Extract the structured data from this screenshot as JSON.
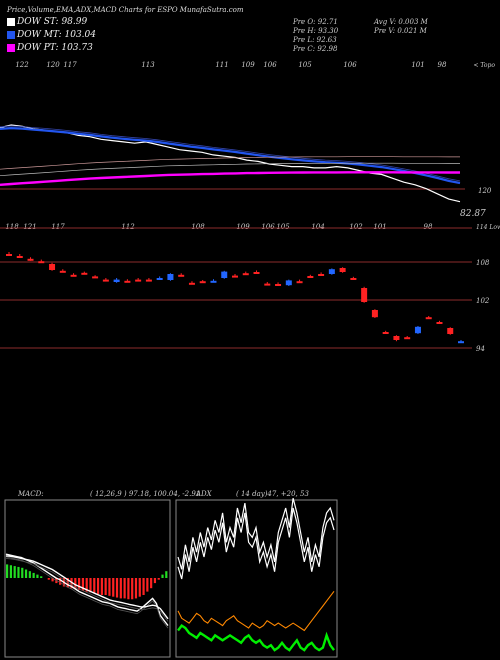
{
  "header": {
    "title": "Price,Volume,EMA,ADX,MACD Charts for ESPO MunafaSutra.com",
    "legend": [
      {
        "label": "DOW ST: 98.99",
        "color": "#ffffff"
      },
      {
        "label": "DOW MT: 103.04",
        "color": "#2255ee"
      },
      {
        "label": "DOW PT: 103.73",
        "color": "#ff00ff"
      }
    ],
    "info_left": [
      "Pre  O: 92.71",
      "Pre  H: 93.30",
      "Pre  L: 92.63",
      "Pre  C: 92.98"
    ],
    "info_right": [
      "Avg V: 0.003 M",
      "Pre  V: 0.021 M"
    ]
  },
  "chart_data": [
    {
      "type": "line",
      "name": "price-ema",
      "top_labels": [
        "122",
        "120",
        "117",
        "113",
        "111",
        "109",
        "106",
        "105",
        "106",
        "101",
        "98"
      ],
      "right_label_top": "< Topo",
      "level_label": "120",
      "last_price_label": "82.87",
      "series": [
        {
          "color": "#ffffff",
          "values": [
            121,
            122,
            121.5,
            120.5,
            120,
            119.5,
            119,
            118,
            117.5,
            116.5,
            116,
            115.5,
            115,
            115.5,
            114.5,
            113.5,
            112.5,
            112,
            111.5,
            110.5,
            110,
            109.5,
            108.5,
            108,
            107,
            106.5,
            106,
            106,
            105.5,
            105.5,
            106,
            105.5,
            104.5,
            103.5,
            103,
            101.5,
            100,
            99,
            97.5,
            95.5,
            93.5,
            92.5
          ]
        },
        {
          "color": "#2255ee",
          "values": [
            120.5,
            120.8,
            120.6,
            120.2,
            119.9,
            119.5,
            119.1,
            118.6,
            118.2,
            117.6,
            117.1,
            116.7,
            116.3,
            116,
            115.5,
            114.9,
            114.3,
            113.7,
            113.2,
            112.6,
            112.1,
            111.6,
            111,
            110.4,
            109.8,
            109.3,
            108.8,
            108.4,
            108,
            107.7,
            107.5,
            107.2,
            106.8,
            106.3,
            105.8,
            105.1,
            104.3,
            103.5,
            102.6,
            101.6,
            100.5,
            99.7
          ]
        },
        {
          "color": "#ff00ff",
          "values": [
            99,
            99.3,
            99.6,
            99.9,
            100.2,
            100.5,
            100.8,
            101.1,
            101.4,
            101.6,
            101.8,
            102,
            102.2,
            102.4,
            102.6,
            102.8,
            102.9,
            103,
            103.1,
            103.2,
            103.3,
            103.4,
            103.5,
            103.55,
            103.6,
            103.65,
            103.7,
            103.72,
            103.75,
            103.77,
            103.78,
            103.79,
            103.8,
            103.8,
            103.8,
            103.79,
            103.78,
            103.77,
            103.76,
            103.75,
            103.74,
            103.73
          ]
        }
      ]
    },
    {
      "type": "candlestick",
      "name": "price-candles",
      "top_labels": [
        "118",
        "121",
        "117",
        "112",
        "108",
        "109",
        "106",
        "105",
        "104",
        "102",
        "101",
        "98"
      ],
      "right_labels": [
        "114 Lower",
        "108",
        "102",
        "94"
      ],
      "candles": [
        {
          "o": 119,
          "c": 119,
          "h": 119.5,
          "l": 118.5,
          "color": "#ff2222"
        },
        {
          "o": 118.5,
          "c": 118.5,
          "h": 119,
          "l": 118,
          "color": "#ff2222"
        },
        {
          "o": 117.8,
          "c": 117.8,
          "h": 118.2,
          "l": 117.3,
          "color": "#ff2222"
        },
        {
          "o": 117.2,
          "c": 117.2,
          "h": 117.6,
          "l": 116.8,
          "color": "#ff2222"
        },
        {
          "o": 116.5,
          "c": 115,
          "h": 116.8,
          "l": 114.8,
          "color": "#ff2222"
        },
        {
          "o": 114.8,
          "c": 114.8,
          "h": 115.2,
          "l": 114.4,
          "color": "#ff2222"
        },
        {
          "o": 113.8,
          "c": 113.8,
          "h": 114.2,
          "l": 113.4,
          "color": "#ff2222"
        },
        {
          "o": 114.3,
          "c": 114.3,
          "h": 114.6,
          "l": 113.9,
          "color": "#ff2222"
        },
        {
          "o": 113.4,
          "c": 113.4,
          "h": 113.7,
          "l": 113.1,
          "color": "#ff2222"
        },
        {
          "o": 112.6,
          "c": 112.6,
          "h": 113,
          "l": 112.2,
          "color": "#ff2222"
        },
        {
          "o": 112,
          "c": 112.6,
          "h": 113,
          "l": 111.8,
          "color": "#2266ff"
        },
        {
          "o": 112.3,
          "c": 112.3,
          "h": 112.7,
          "l": 112,
          "color": "#ff2222"
        },
        {
          "o": 112.6,
          "c": 112.6,
          "h": 113,
          "l": 112.2,
          "color": "#ff2222"
        },
        {
          "o": 112.6,
          "c": 112.6,
          "h": 113,
          "l": 112.2,
          "color": "#ff2222"
        },
        {
          "o": 113,
          "c": 113,
          "h": 113.4,
          "l": 112.6,
          "color": "#2266ff"
        },
        {
          "o": 112.5,
          "c": 114,
          "h": 114.2,
          "l": 112.3,
          "color": "#2266ff"
        },
        {
          "o": 113.8,
          "c": 113.8,
          "h": 114.2,
          "l": 113.4,
          "color": "#ff2222"
        },
        {
          "o": 111.8,
          "c": 111.8,
          "h": 112.2,
          "l": 111.4,
          "color": "#ff2222"
        },
        {
          "o": 112.2,
          "c": 112.2,
          "h": 112.5,
          "l": 111.9,
          "color": "#ff2222"
        },
        {
          "o": 112.3,
          "c": 112.3,
          "h": 112.7,
          "l": 111.9,
          "color": "#2266ff"
        },
        {
          "o": 113,
          "c": 114.6,
          "h": 114.8,
          "l": 112.8,
          "color": "#2266ff"
        },
        {
          "o": 113.6,
          "c": 113.6,
          "h": 114,
          "l": 113.2,
          "color": "#ff2222"
        },
        {
          "o": 114.2,
          "c": 114.2,
          "h": 114.6,
          "l": 113.8,
          "color": "#ff2222"
        },
        {
          "o": 114.5,
          "c": 114.5,
          "h": 114.9,
          "l": 114.1,
          "color": "#ff2222"
        },
        {
          "o": 111.6,
          "c": 111.6,
          "h": 112,
          "l": 111.2,
          "color": "#ff2222"
        },
        {
          "o": 111.5,
          "c": 111.5,
          "h": 111.9,
          "l": 111.1,
          "color": "#ff2222"
        },
        {
          "o": 111.2,
          "c": 112.4,
          "h": 112.6,
          "l": 111,
          "color": "#2266ff"
        },
        {
          "o": 112.2,
          "c": 112.2,
          "h": 112.6,
          "l": 111.8,
          "color": "#ff2222"
        },
        {
          "o": 113.5,
          "c": 113.5,
          "h": 113.8,
          "l": 113.2,
          "color": "#ff2222"
        },
        {
          "o": 114,
          "c": 114,
          "h": 114.4,
          "l": 113.6,
          "color": "#ff2222"
        },
        {
          "o": 114,
          "c": 115.2,
          "h": 115.4,
          "l": 113.8,
          "color": "#2266ff"
        },
        {
          "o": 115.5,
          "c": 114.5,
          "h": 115.7,
          "l": 114.3,
          "color": "#ff2222"
        },
        {
          "o": 113,
          "c": 113,
          "h": 113.3,
          "l": 112.7,
          "color": "#ff2222"
        },
        {
          "o": 110.5,
          "c": 107,
          "h": 110.8,
          "l": 106.8,
          "color": "#ff2222"
        },
        {
          "o": 105,
          "c": 103.2,
          "h": 105.2,
          "l": 103,
          "color": "#ff2222"
        },
        {
          "o": 99.5,
          "c": 99.5,
          "h": 99.8,
          "l": 99.2,
          "color": "#ff2222"
        },
        {
          "o": 98.5,
          "c": 97.5,
          "h": 98.7,
          "l": 97.2,
          "color": "#ff2222"
        },
        {
          "o": 98.2,
          "c": 98.2,
          "h": 98.5,
          "l": 97.8,
          "color": "#ff2222"
        },
        {
          "o": 99.2,
          "c": 100.8,
          "h": 101,
          "l": 99,
          "color": "#2266ff"
        },
        {
          "o": 103.2,
          "c": 103.2,
          "h": 103.5,
          "l": 102.9,
          "color": "#ff2222"
        },
        {
          "o": 102,
          "c": 102,
          "h": 102.3,
          "l": 101.7,
          "color": "#ff2222"
        },
        {
          "o": 100.5,
          "c": 99,
          "h": 100.7,
          "l": 98.8,
          "color": "#ff2222"
        },
        {
          "o": 97.2,
          "c": 97.2,
          "h": 97.5,
          "l": 96.8,
          "color": "#2266ff"
        }
      ]
    },
    {
      "type": "bar",
      "name": "macd",
      "label": "MACD:",
      "params": "( 12,26,9 ) 97.18,  100.04,  -2.91",
      "histogram": [
        8,
        7.5,
        7,
        6.5,
        6,
        5,
        4,
        3,
        2,
        1,
        0,
        -1,
        -2,
        -3,
        -4,
        -5,
        -5.5,
        -6,
        -6.5,
        -7,
        -7.5,
        -8,
        -8.5,
        -9,
        -9.5,
        -10,
        -10,
        -10.5,
        -11,
        -11.5,
        -12,
        -12,
        -12.5,
        -12.5,
        -12,
        -11,
        -10,
        -8,
        -6,
        -3,
        -1,
        2,
        4
      ],
      "lines": [
        [
          14,
          13.5,
          13,
          12.5,
          12,
          11,
          10,
          9,
          7.5,
          6,
          4.5,
          3,
          1.5,
          0,
          -1,
          -2.5,
          -4,
          -5,
          -6.5,
          -8,
          -9,
          -10,
          -11,
          -12,
          -13,
          -14,
          -14.5,
          -15,
          -16,
          -17,
          -17.5,
          -18,
          -18.5,
          -19,
          -19.5,
          -18,
          -16,
          -14,
          -12,
          -15,
          -22,
          -25,
          -28
        ],
        [
          13,
          12.8,
          12.5,
          12,
          11.5,
          11,
          10.5,
          10,
          9,
          8,
          7,
          6,
          5,
          3.5,
          2,
          0.5,
          -1,
          -2.5,
          -4,
          -5,
          -6,
          -7,
          -8,
          -9,
          -10,
          -11,
          -12,
          -13,
          -13.5,
          -14,
          -14.5,
          -15,
          -15.5,
          -16,
          -16.5,
          -17,
          -17,
          -16.5,
          -16,
          -16.5,
          -18,
          -21,
          -24
        ]
      ]
    },
    {
      "type": "line",
      "name": "adx",
      "label": "ADX",
      "params": "( 14  day)47,   +20,   53",
      "series": [
        {
          "color": "#ffffff",
          "values": [
            40,
            35,
            45,
            38,
            48,
            42,
            50,
            44,
            52,
            47,
            55,
            50,
            58,
            46,
            52,
            48,
            60,
            54,
            62,
            50,
            48,
            52,
            42,
            46,
            40,
            45,
            38,
            50,
            55,
            60,
            52,
            64,
            58,
            50,
            42,
            48,
            38,
            45,
            40,
            52,
            58,
            60,
            55
          ]
        },
        {
          "color": "#ffffff",
          "values": [
            36,
            31,
            41,
            34,
            44,
            38,
            46,
            40,
            48,
            43,
            51,
            46,
            54,
            42,
            48,
            44,
            56,
            50,
            58,
            46,
            44,
            48,
            38,
            42,
            36,
            41,
            34,
            46,
            51,
            56,
            48,
            60,
            54,
            46,
            38,
            44,
            34,
            41,
            36,
            48,
            54,
            56,
            51
          ]
        },
        {
          "color": "#ff8800",
          "values": [
            18,
            15,
            14,
            13,
            15,
            17,
            16,
            14,
            13,
            15,
            14,
            13,
            12,
            14,
            15,
            16,
            14,
            13,
            12,
            11,
            13,
            12,
            11,
            12,
            14,
            13,
            12,
            13,
            12,
            11,
            12,
            13,
            12,
            11,
            10,
            12,
            14,
            16,
            18,
            20,
            22,
            24,
            26
          ]
        },
        {
          "color": "#00ee00",
          "values": [
            10,
            12,
            11,
            9,
            8,
            7,
            9,
            8,
            7,
            6,
            8,
            7,
            6,
            7,
            8,
            7,
            6,
            5,
            7,
            8,
            6,
            5,
            6,
            4,
            3,
            4,
            2,
            3,
            5,
            3,
            2,
            4,
            6,
            3,
            2,
            4,
            5,
            3,
            2,
            3,
            8,
            4,
            2
          ]
        }
      ]
    }
  ]
}
